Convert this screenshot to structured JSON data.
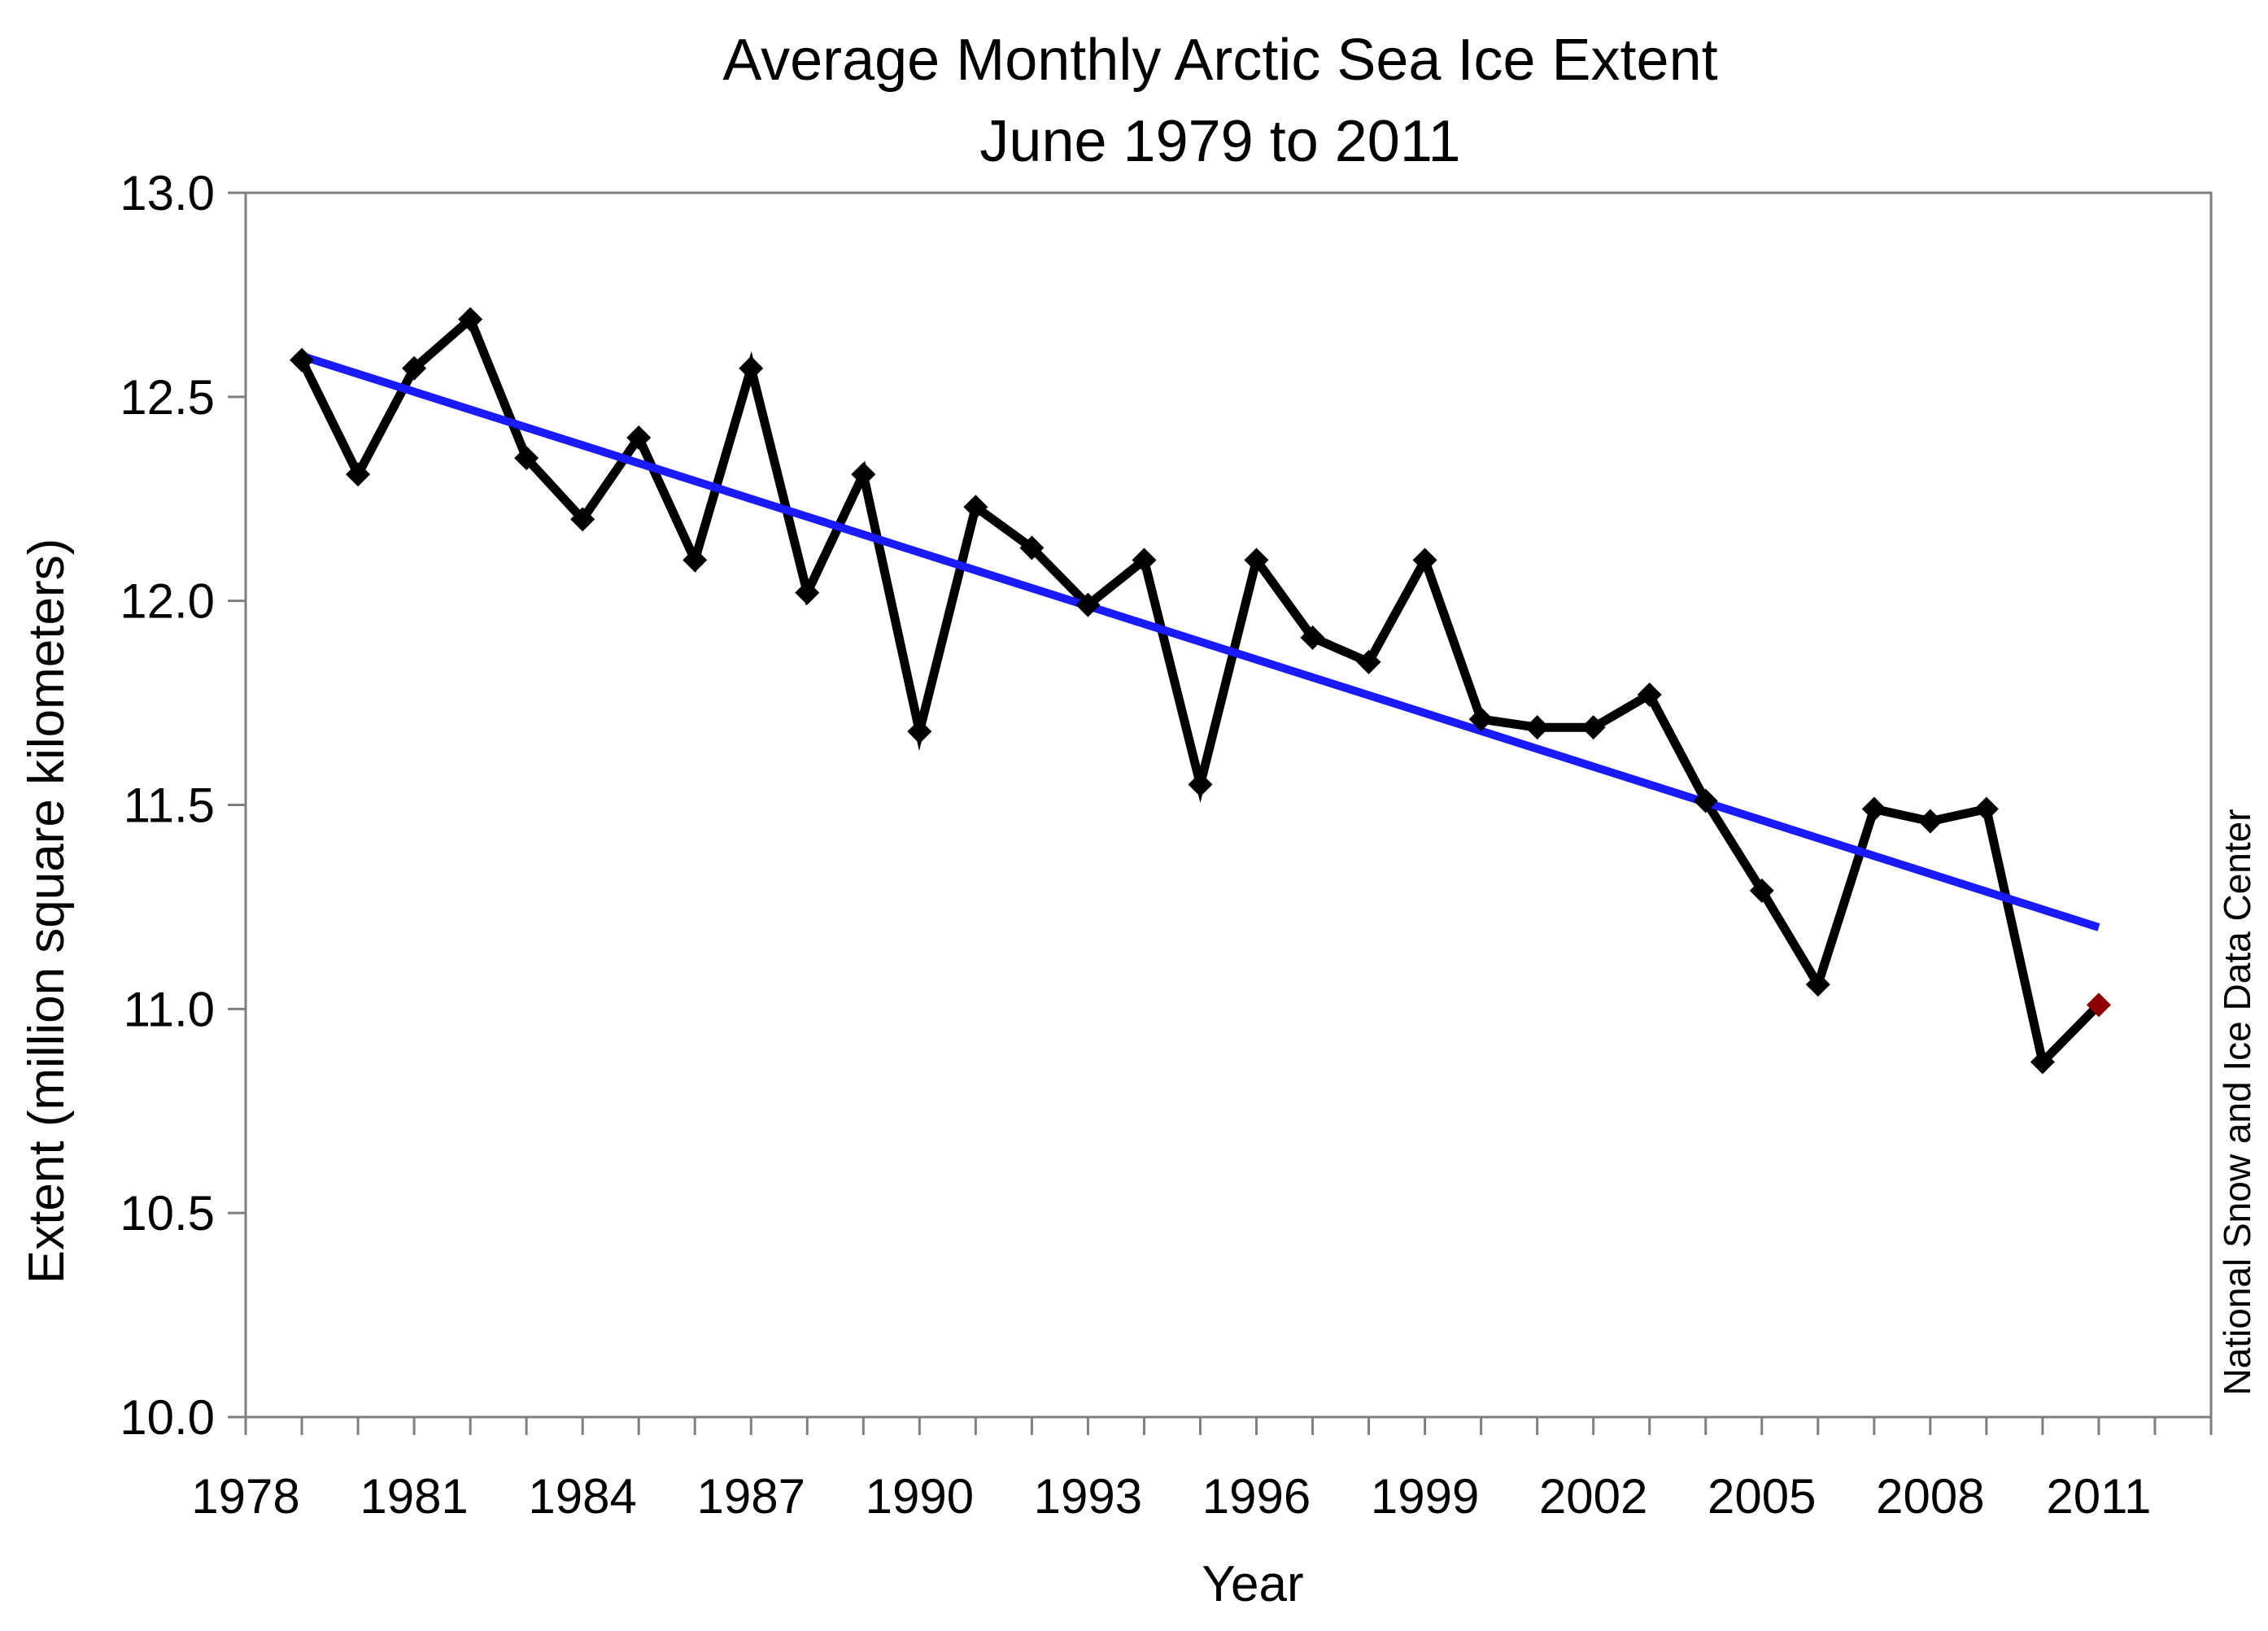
{
  "chart_data": {
    "type": "line",
    "title": "Average Monthly Arctic Sea Ice Extent",
    "subtitle": "June 1979 to 2011",
    "xlabel": "Year",
    "ylabel": "Extent (million square kilometers)",
    "credit": "National Snow and Ice Data Center",
    "xlim": [
      1978,
      2013
    ],
    "ylim": [
      10.0,
      13.0
    ],
    "x_ticks": [
      1978,
      1981,
      1984,
      1987,
      1990,
      1993,
      1996,
      1999,
      2002,
      2005,
      2008,
      2011
    ],
    "x_tick_labels": [
      "1978",
      "1981",
      "1984",
      "1987",
      "1990",
      "1993",
      "1996",
      "1999",
      "2002",
      "2005",
      "2008",
      "2011"
    ],
    "y_ticks": [
      10.0,
      10.5,
      11.0,
      11.5,
      12.0,
      12.5,
      13.0
    ],
    "y_tick_labels": [
      "10.0",
      "10.5",
      "11.0",
      "11.5",
      "12.0",
      "12.5",
      "13.0"
    ],
    "grid": false,
    "series": [
      {
        "name": "June extent",
        "color": "#000000",
        "x": [
          1979,
          1980,
          1981,
          1982,
          1983,
          1984,
          1985,
          1986,
          1987,
          1988,
          1989,
          1990,
          1991,
          1992,
          1993,
          1994,
          1995,
          1996,
          1997,
          1998,
          1999,
          2000,
          2001,
          2002,
          2003,
          2004,
          2005,
          2006,
          2007,
          2008,
          2009,
          2010,
          2011
        ],
        "values": [
          12.59,
          12.31,
          12.57,
          12.69,
          12.35,
          12.2,
          12.4,
          12.1,
          12.57,
          12.02,
          12.31,
          11.68,
          12.23,
          12.13,
          11.99,
          12.1,
          11.55,
          12.1,
          11.91,
          11.85,
          12.1,
          11.71,
          11.69,
          11.69,
          11.77,
          11.51,
          11.29,
          11.06,
          11.49,
          11.46,
          11.49,
          10.87,
          11.01
        ],
        "highlight": {
          "year": 2011,
          "color": "#8b0000"
        }
      },
      {
        "name": "Linear trend",
        "type": "trend",
        "color": "#1a1aff",
        "x": [
          1979,
          2011
        ],
        "values": [
          12.6,
          11.2
        ]
      }
    ]
  }
}
